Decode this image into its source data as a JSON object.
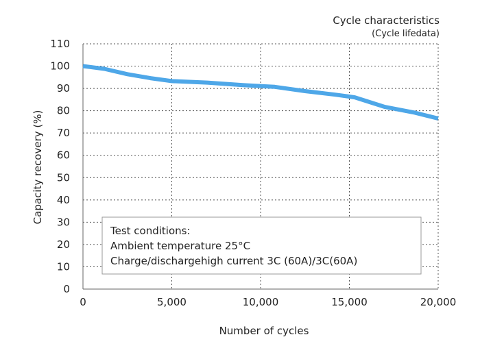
{
  "chart_data": {
    "type": "line",
    "title": "Cycle characteristics",
    "subtitle": "(Cycle lifedata)",
    "xlabel": "Number of cycles",
    "ylabel": "Capacity recovery (%)",
    "xlim": [
      0,
      20000
    ],
    "ylim": [
      0,
      110
    ],
    "x_ticks": [
      0,
      5000,
      10000,
      15000,
      20000
    ],
    "x_tick_labels": [
      "0",
      "5,000",
      "10,000",
      "15,000",
      "20,000"
    ],
    "y_ticks": [
      0,
      10,
      20,
      30,
      40,
      50,
      60,
      70,
      80,
      90,
      100,
      110
    ],
    "y_tick_labels": [
      "0",
      "10",
      "20",
      "30",
      "40",
      "50",
      "60",
      "70",
      "80",
      "90",
      "100",
      "110"
    ],
    "grid": true,
    "series": [
      {
        "name": "Capacity recovery",
        "color": "#4ea7e8",
        "x": [
          0,
          1200,
          2500,
          3800,
          5000,
          7000,
          9000,
          10800,
          12500,
          14200,
          15300,
          17000,
          18700,
          20000
        ],
        "y": [
          100,
          98.8,
          96.4,
          94.6,
          93.3,
          92.6,
          91.5,
          90.7,
          88.8,
          87.2,
          86.0,
          81.7,
          79.1,
          76.5
        ]
      }
    ],
    "annotation": {
      "lines": [
        "Test conditions:",
        "Ambient temperature  25°C",
        "Charge/dischargehigh current 3C (60A)/3C(60A)"
      ]
    }
  }
}
